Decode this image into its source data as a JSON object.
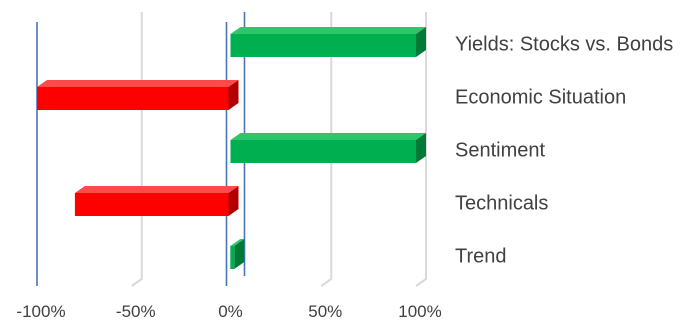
{
  "chart_data": {
    "type": "bar",
    "orientation": "horizontal",
    "style": "3d",
    "title": "",
    "xlabel": "",
    "ylabel": "",
    "xlim": [
      -1,
      1
    ],
    "grid": true,
    "legend": "none",
    "x_ticks": [
      {
        "value": -1.0,
        "label": "-100%"
      },
      {
        "value": -0.5,
        "label": "-50%"
      },
      {
        "value": 0.0,
        "label": "0%"
      },
      {
        "value": 0.5,
        "label": "50%"
      },
      {
        "value": 1.0,
        "label": "100%"
      }
    ],
    "categories": [
      "Yields: Stocks vs. Bonds",
      "Economic Situation",
      "Sentiment",
      "Technicals",
      "Trend"
    ],
    "values": [
      1.0,
      -1.0,
      1.0,
      -0.8,
      0.02
    ],
    "colors": {
      "positive": "#00b050",
      "positive_top": "#2ec66a",
      "positive_side": "#007a36",
      "negative": "#ff0000",
      "negative_top": "#ff4a4a",
      "negative_side": "#b00000",
      "grid": "#d9d9d9",
      "wall": "#4a74b4",
      "text": "#404040"
    }
  }
}
